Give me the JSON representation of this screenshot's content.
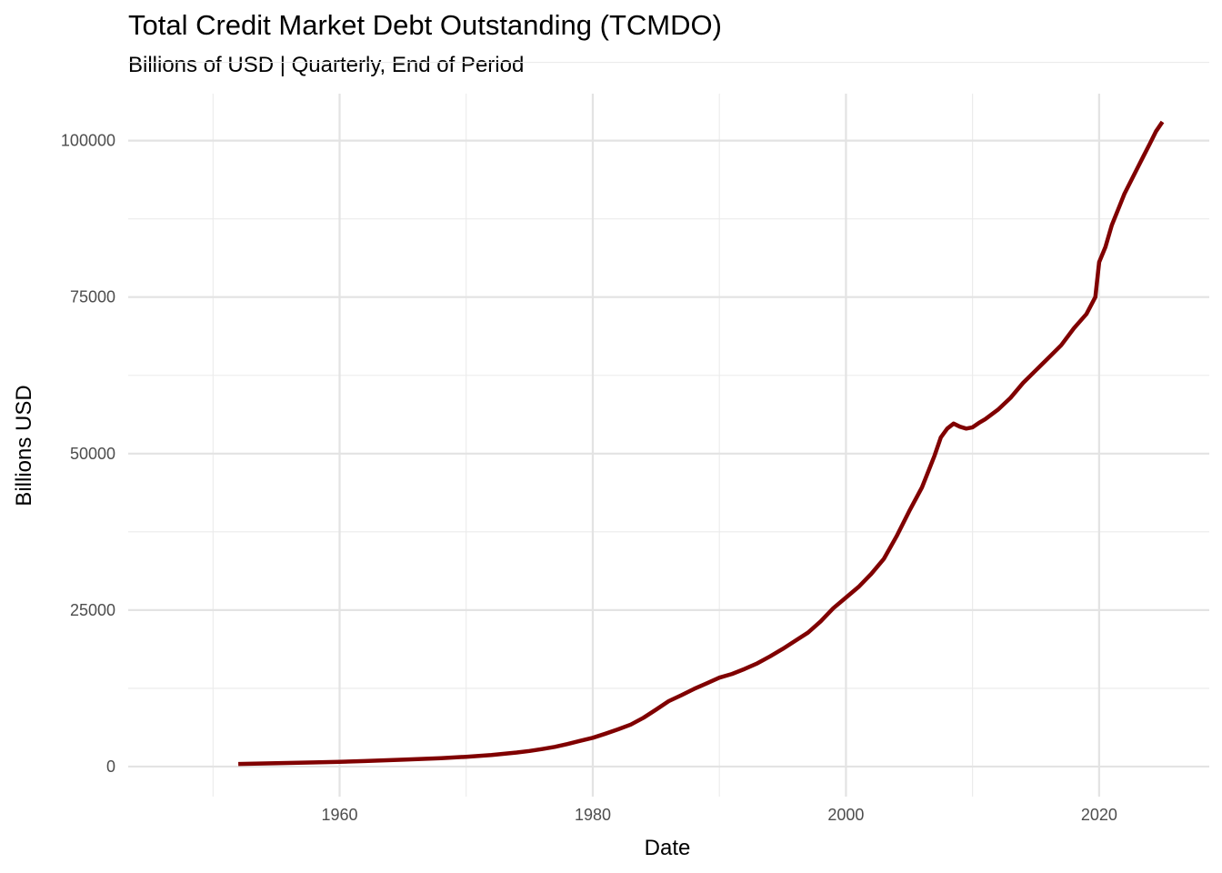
{
  "chart_data": {
    "type": "line",
    "title": "Total Credit Market Debt Outstanding (TCMDO)",
    "subtitle": "Billions of USD | Quarterly, End of Period",
    "xlabel": "Date",
    "ylabel": "Billions USD",
    "xlim": [
      1943.3,
      2028.7
    ],
    "ylim": [
      -4800,
      107500
    ],
    "x_ticks": [
      1960,
      1980,
      2000,
      2020
    ],
    "x_tick_labels": [
      "1960",
      "1980",
      "2000",
      "2020"
    ],
    "y_ticks": [
      0,
      25000,
      50000,
      75000,
      100000
    ],
    "y_tick_labels": [
      "0",
      "25000",
      "50000",
      "75000",
      "100000"
    ],
    "grid": true,
    "legend": "none",
    "series": [
      {
        "color": "#800000",
        "x": [
          1952.0,
          1955,
          1958,
          1960,
          1962,
          1965,
          1968,
          1970,
          1972,
          1974,
          1975,
          1976,
          1977,
          1978,
          1979,
          1980,
          1981,
          1982,
          1983,
          1984,
          1985,
          1986,
          1987,
          1988,
          1989,
          1990,
          1991,
          1992,
          1993,
          1994,
          1995,
          1996,
          1997,
          1998,
          1999,
          2000,
          2001,
          2002,
          2003,
          2004,
          2005,
          2006,
          2007,
          2007.5,
          2008,
          2008.5,
          2009,
          2009.5,
          2010,
          2010.5,
          2011,
          2012,
          2013,
          2014,
          2015,
          2016,
          2017,
          2018,
          2019,
          2019.7,
          2020.0,
          2020.5,
          2021,
          2021.5,
          2022,
          2023,
          2023.5,
          2024,
          2024.5,
          2025.0
        ],
        "y": [
          420,
          550,
          660,
          770,
          880,
          1100,
          1350,
          1560,
          1850,
          2250,
          2500,
          2800,
          3150,
          3600,
          4100,
          4600,
          5250,
          5950,
          6700,
          7800,
          9100,
          10450,
          11400,
          12400,
          13300,
          14200,
          14800,
          15600,
          16500,
          17600,
          18800,
          20100,
          21400,
          23200,
          25300,
          27000,
          28700,
          30800,
          33200,
          36800,
          40800,
          44600,
          49700,
          52600,
          54000,
          54800,
          54300,
          54000,
          54200,
          54900,
          55500,
          57000,
          58900,
          61300,
          63300,
          65300,
          67300,
          70000,
          72300,
          75000,
          80600,
          83000,
          86500,
          89000,
          91500,
          95500,
          97500,
          99500,
          101500,
          103000
        ]
      }
    ]
  }
}
